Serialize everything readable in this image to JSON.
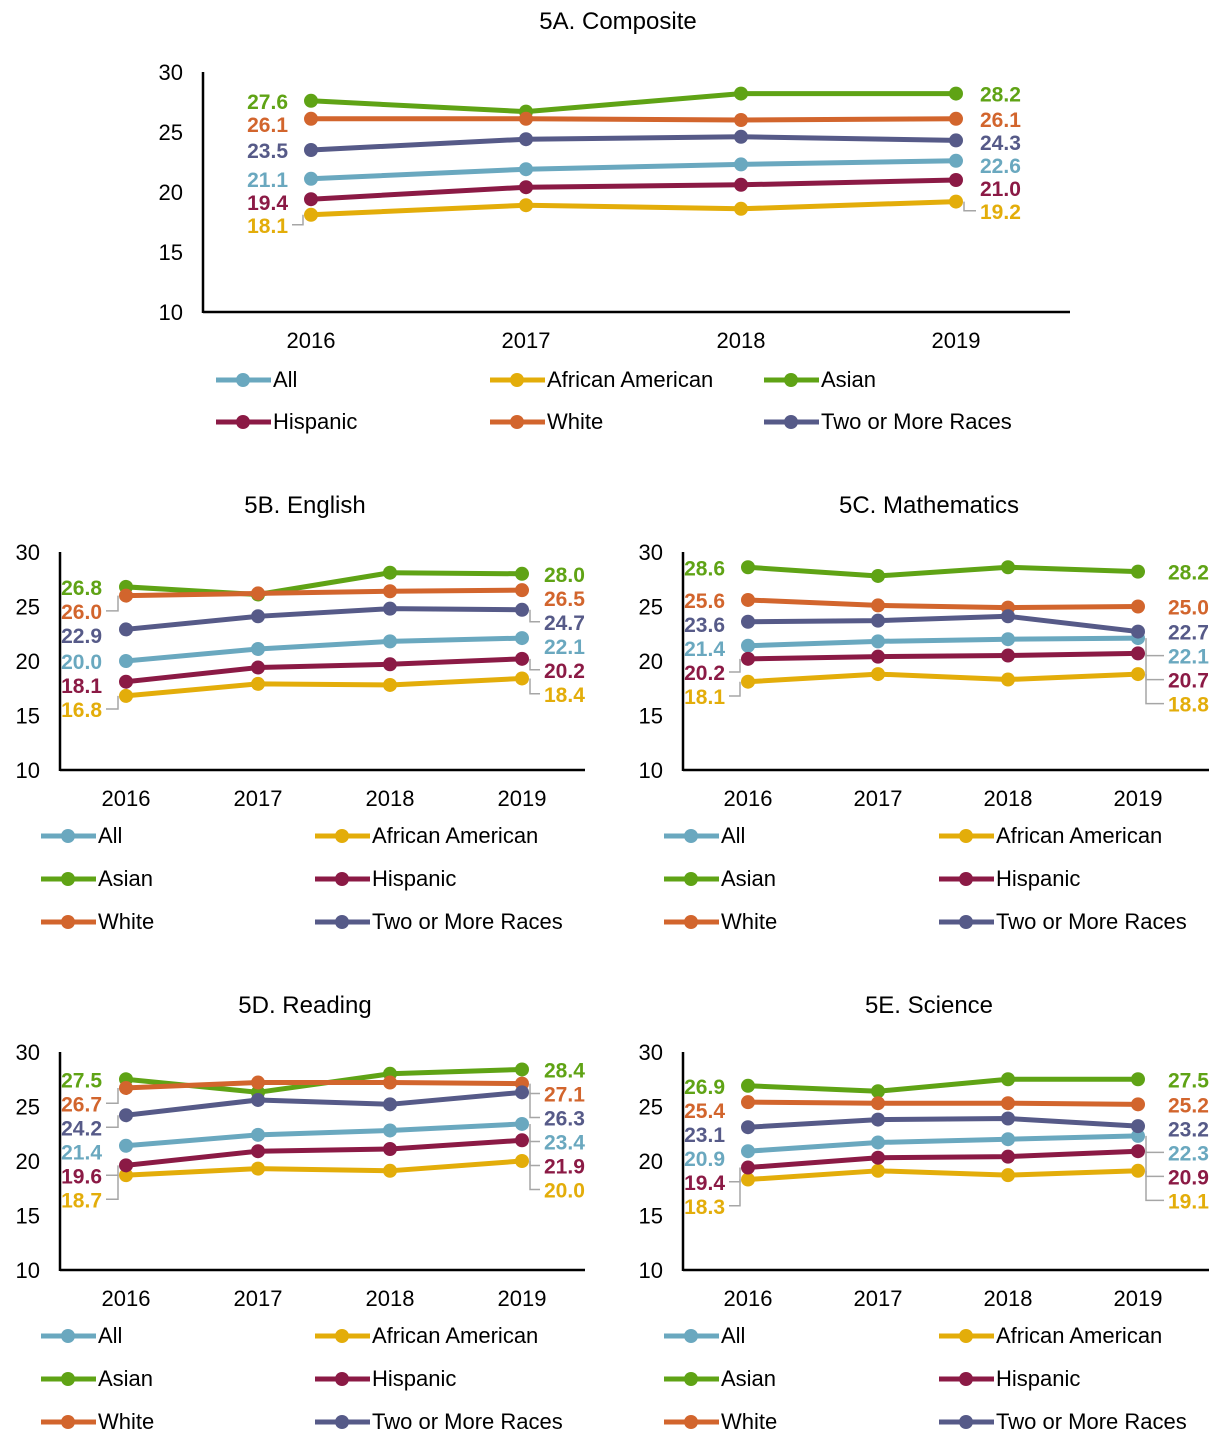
{
  "chart_data": [
    {
      "id": "5A",
      "type": "line",
      "title": "5A. Composite",
      "categories": [
        "2016",
        "2017",
        "2018",
        "2019"
      ],
      "ylim": [
        10,
        30
      ],
      "yticks": [
        10,
        15,
        20,
        25,
        30
      ],
      "series": [
        {
          "name": "All",
          "color": "#6aa8bf",
          "values": [
            21.1,
            21.9,
            22.3,
            22.6
          ],
          "labels": [
            "21.1",
            "22.6"
          ]
        },
        {
          "name": "African American",
          "color": "#e3ad0a",
          "values": [
            18.1,
            18.9,
            18.6,
            19.2
          ],
          "labels": [
            "18.1",
            "19.2"
          ]
        },
        {
          "name": "Asian",
          "color": "#5fa315",
          "values": [
            27.6,
            26.7,
            28.2,
            28.2
          ],
          "labels": [
            "27.6",
            "28.2"
          ]
        },
        {
          "name": "Hispanic",
          "color": "#8b1a45",
          "values": [
            19.4,
            20.4,
            20.6,
            21.0
          ],
          "labels": [
            "19.4",
            "21.0"
          ]
        },
        {
          "name": "White",
          "color": "#d2652d",
          "values": [
            26.1,
            26.1,
            26.0,
            26.1
          ],
          "labels": [
            "26.1",
            "26.1"
          ]
        },
        {
          "name": "Two or More Races",
          "color": "#565a88",
          "values": [
            23.5,
            24.4,
            24.6,
            24.3
          ],
          "labels": [
            "23.5",
            "24.3"
          ]
        }
      ],
      "grid": false,
      "legend": "bottom"
    },
    {
      "id": "5B",
      "type": "line",
      "title": "5B. English",
      "categories": [
        "2016",
        "2017",
        "2018",
        "2019"
      ],
      "ylim": [
        10,
        30
      ],
      "yticks": [
        10,
        15,
        20,
        25,
        30
      ],
      "series": [
        {
          "name": "All",
          "color": "#6aa8bf",
          "values": [
            20.0,
            21.1,
            21.8,
            22.1
          ],
          "labels": [
            "20.0",
            "22.1"
          ]
        },
        {
          "name": "African American",
          "color": "#e3ad0a",
          "values": [
            16.8,
            17.9,
            17.8,
            18.4
          ],
          "labels": [
            "16.8",
            "18.4"
          ]
        },
        {
          "name": "Asian",
          "color": "#5fa315",
          "values": [
            26.8,
            26.1,
            28.1,
            28.0
          ],
          "labels": [
            "26.8",
            "28.0"
          ]
        },
        {
          "name": "Hispanic",
          "color": "#8b1a45",
          "values": [
            18.1,
            19.4,
            19.7,
            20.2
          ],
          "labels": [
            "18.1",
            "20.2"
          ]
        },
        {
          "name": "White",
          "color": "#d2652d",
          "values": [
            26.0,
            26.2,
            26.4,
            26.5
          ],
          "labels": [
            "26.0",
            "26.5"
          ]
        },
        {
          "name": "Two or More Races",
          "color": "#565a88",
          "values": [
            22.9,
            24.1,
            24.8,
            24.7
          ],
          "labels": [
            "22.9",
            "24.7"
          ]
        }
      ],
      "grid": false,
      "legend": "bottom"
    },
    {
      "id": "5C",
      "type": "line",
      "title": "5C. Mathematics",
      "categories": [
        "2016",
        "2017",
        "2018",
        "2019"
      ],
      "ylim": [
        10,
        30
      ],
      "yticks": [
        10,
        15,
        20,
        25,
        30
      ],
      "series": [
        {
          "name": "All",
          "color": "#6aa8bf",
          "values": [
            21.4,
            21.8,
            22.0,
            22.1
          ],
          "labels": [
            "21.4",
            "22.1"
          ]
        },
        {
          "name": "African American",
          "color": "#e3ad0a",
          "values": [
            18.1,
            18.8,
            18.3,
            18.8
          ],
          "labels": [
            "18.1",
            "18.8"
          ]
        },
        {
          "name": "Asian",
          "color": "#5fa315",
          "values": [
            28.6,
            27.8,
            28.6,
            28.2
          ],
          "labels": [
            "28.6",
            "28.2"
          ]
        },
        {
          "name": "Hispanic",
          "color": "#8b1a45",
          "values": [
            20.2,
            20.4,
            20.5,
            20.7
          ],
          "labels": [
            "20.2",
            "20.7"
          ]
        },
        {
          "name": "White",
          "color": "#d2652d",
          "values": [
            25.6,
            25.1,
            24.9,
            25.0
          ],
          "labels": [
            "25.6",
            "25.0"
          ]
        },
        {
          "name": "Two or More Races",
          "color": "#565a88",
          "values": [
            23.6,
            23.7,
            24.1,
            22.7
          ],
          "labels": [
            "23.6",
            "22.7"
          ]
        }
      ],
      "grid": false,
      "legend": "bottom"
    },
    {
      "id": "5D",
      "type": "line",
      "title": "5D. Reading",
      "categories": [
        "2016",
        "2017",
        "2018",
        "2019"
      ],
      "ylim": [
        10,
        30
      ],
      "yticks": [
        10,
        15,
        20,
        25,
        30
      ],
      "series": [
        {
          "name": "All",
          "color": "#6aa8bf",
          "values": [
            21.4,
            22.4,
            22.8,
            23.4
          ],
          "labels": [
            "21.4",
            "23.4"
          ]
        },
        {
          "name": "African American",
          "color": "#e3ad0a",
          "values": [
            18.7,
            19.3,
            19.1,
            20.0
          ],
          "labels": [
            "18.7",
            "20.0"
          ]
        },
        {
          "name": "Asian",
          "color": "#5fa315",
          "values": [
            27.5,
            26.3,
            28.0,
            28.4
          ],
          "labels": [
            "27.5",
            "28.4"
          ]
        },
        {
          "name": "Hispanic",
          "color": "#8b1a45",
          "values": [
            19.6,
            20.9,
            21.1,
            21.9
          ],
          "labels": [
            "19.6",
            "21.9"
          ]
        },
        {
          "name": "White",
          "color": "#d2652d",
          "values": [
            26.7,
            27.2,
            27.2,
            27.1
          ],
          "labels": [
            "26.7",
            "27.1"
          ]
        },
        {
          "name": "Two or More Races",
          "color": "#565a88",
          "values": [
            24.2,
            25.6,
            25.2,
            26.3
          ],
          "labels": [
            "24.2",
            "26.3"
          ]
        }
      ],
      "grid": false,
      "legend": "bottom"
    },
    {
      "id": "5E",
      "type": "line",
      "title": "5E. Science",
      "categories": [
        "2016",
        "2017",
        "2018",
        "2019"
      ],
      "ylim": [
        10,
        30
      ],
      "yticks": [
        10,
        15,
        20,
        25,
        30
      ],
      "series": [
        {
          "name": "All",
          "color": "#6aa8bf",
          "values": [
            20.9,
            21.7,
            22.0,
            22.3
          ],
          "labels": [
            "20.9",
            "22.3"
          ]
        },
        {
          "name": "African American",
          "color": "#e3ad0a",
          "values": [
            18.3,
            19.1,
            18.7,
            19.1
          ],
          "labels": [
            "18.3",
            "19.1"
          ]
        },
        {
          "name": "Asian",
          "color": "#5fa315",
          "values": [
            26.9,
            26.4,
            27.5,
            27.5
          ],
          "labels": [
            "26.9",
            "27.5"
          ]
        },
        {
          "name": "Hispanic",
          "color": "#8b1a45",
          "values": [
            19.4,
            20.3,
            20.4,
            20.9
          ],
          "labels": [
            "19.4",
            "20.9"
          ]
        },
        {
          "name": "White",
          "color": "#d2652d",
          "values": [
            25.4,
            25.3,
            25.3,
            25.2
          ],
          "labels": [
            "25.4",
            "25.2"
          ]
        },
        {
          "name": "Two or More Races",
          "color": "#565a88",
          "values": [
            23.1,
            23.8,
            23.9,
            23.2
          ],
          "labels": [
            "23.1",
            "23.2"
          ]
        }
      ],
      "grid": false,
      "legend": "bottom"
    }
  ]
}
